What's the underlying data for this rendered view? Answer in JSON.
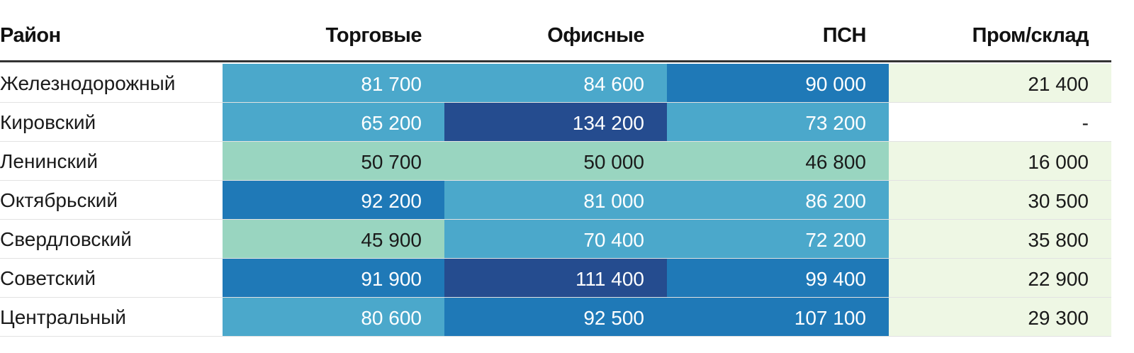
{
  "chart_data": {
    "type": "heatmap",
    "row_header": "Район",
    "columns": [
      "Торговые",
      "Офисные",
      "ПСН",
      "Пром/склад"
    ],
    "rows": [
      {
        "name": "Железнодорожный",
        "values": [
          81700,
          84600,
          90000,
          21400
        ],
        "labels": [
          "81 700",
          "84 600",
          "90 000",
          "21 400"
        ]
      },
      {
        "name": "Кировский",
        "values": [
          65200,
          134200,
          73200,
          null
        ],
        "labels": [
          "65 200",
          "134 200",
          "73 200",
          "-"
        ]
      },
      {
        "name": "Ленинский",
        "values": [
          50700,
          50000,
          46800,
          16000
        ],
        "labels": [
          "50 700",
          "50 000",
          "46 800",
          "16 000"
        ]
      },
      {
        "name": "Октябрьский",
        "values": [
          92200,
          81000,
          86200,
          30500
        ],
        "labels": [
          "92 200",
          "81 000",
          "86 200",
          "30 500"
        ]
      },
      {
        "name": "Свердловский",
        "values": [
          45900,
          70400,
          72200,
          35800
        ],
        "labels": [
          "45 900",
          "70 400",
          "72 200",
          "35 800"
        ]
      },
      {
        "name": "Советский",
        "values": [
          91900,
          111400,
          99400,
          22900
        ],
        "labels": [
          "91 900",
          "111 400",
          "99 400",
          "22 900"
        ]
      },
      {
        "name": "Центральный",
        "values": [
          80600,
          92500,
          107100,
          29300
        ],
        "labels": [
          "80 600",
          "92 500",
          "107 100",
          "29 300"
        ]
      }
    ],
    "color_scale": [
      {
        "max": 0,
        "color": "#ffffff",
        "text": "#1a1a1a"
      },
      {
        "max": 40000,
        "color": "#eef7e4",
        "text": "#1a1a1a"
      },
      {
        "max": 60000,
        "color": "#99d5c0",
        "text": "#1a1a1a"
      },
      {
        "max": 87000,
        "color": "#4ba8cb",
        "text": "#ffffff"
      },
      {
        "max": 110000,
        "color": "#1f79b7",
        "text": "#ffffff"
      },
      {
        "max": 1000000,
        "color": "#254c8f",
        "text": "#ffffff"
      }
    ]
  }
}
